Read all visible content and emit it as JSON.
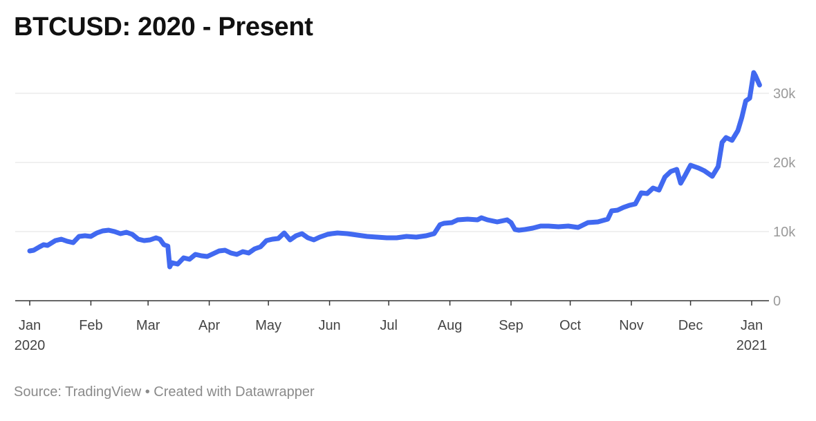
{
  "title": "BTCUSD: 2020 - Present",
  "source_label": "Source: TradingView • Created with Datawrapper",
  "chart_data": {
    "type": "line",
    "title": "BTCUSD: 2020 - Present",
    "xlabel": "",
    "ylabel": "",
    "ylim": [
      0,
      33000
    ],
    "yticks": [
      {
        "value": 0,
        "label": "0"
      },
      {
        "value": 10000,
        "label": "10k"
      },
      {
        "value": 20000,
        "label": "20k"
      },
      {
        "value": 30000,
        "label": "30k"
      }
    ],
    "grid": true,
    "color": "#4169f0",
    "xticks": [
      {
        "date": "2020-01-01",
        "label": "Jan",
        "sub": "2020"
      },
      {
        "date": "2020-02-01",
        "label": "Feb",
        "sub": ""
      },
      {
        "date": "2020-03-01",
        "label": "Mar",
        "sub": ""
      },
      {
        "date": "2020-04-01",
        "label": "Apr",
        "sub": ""
      },
      {
        "date": "2020-05-01",
        "label": "May",
        "sub": ""
      },
      {
        "date": "2020-06-01",
        "label": "Jun",
        "sub": ""
      },
      {
        "date": "2020-07-01",
        "label": "Jul",
        "sub": ""
      },
      {
        "date": "2020-08-01",
        "label": "Aug",
        "sub": ""
      },
      {
        "date": "2020-09-01",
        "label": "Sep",
        "sub": ""
      },
      {
        "date": "2020-10-01",
        "label": "Oct",
        "sub": ""
      },
      {
        "date": "2020-11-01",
        "label": "Nov",
        "sub": ""
      },
      {
        "date": "2020-12-01",
        "label": "Dec",
        "sub": ""
      },
      {
        "date": "2021-01-01",
        "label": "Jan",
        "sub": "2021"
      }
    ],
    "series": [
      {
        "x": [
          "2020-01-01",
          "2020-01-03",
          "2020-01-06",
          "2020-01-08",
          "2020-01-10",
          "2020-01-14",
          "2020-01-17",
          "2020-01-20",
          "2020-01-23",
          "2020-01-26",
          "2020-01-29",
          "2020-02-01",
          "2020-02-04",
          "2020-02-07",
          "2020-02-10",
          "2020-02-13",
          "2020-02-16",
          "2020-02-19",
          "2020-02-22",
          "2020-02-25",
          "2020-02-28",
          "2020-03-02",
          "2020-03-05",
          "2020-03-07",
          "2020-03-09",
          "2020-03-11",
          "2020-03-12",
          "2020-03-13",
          "2020-03-16",
          "2020-03-19",
          "2020-03-22",
          "2020-03-25",
          "2020-03-28",
          "2020-03-31",
          "2020-04-03",
          "2020-04-06",
          "2020-04-09",
          "2020-04-12",
          "2020-04-15",
          "2020-04-18",
          "2020-04-21",
          "2020-04-24",
          "2020-04-27",
          "2020-04-30",
          "2020-05-03",
          "2020-05-06",
          "2020-05-09",
          "2020-05-12",
          "2020-05-15",
          "2020-05-18",
          "2020-05-21",
          "2020-05-24",
          "2020-05-27",
          "2020-05-31",
          "2020-06-02",
          "2020-06-05",
          "2020-06-10",
          "2020-06-15",
          "2020-06-20",
          "2020-06-25",
          "2020-06-30",
          "2020-07-05",
          "2020-07-10",
          "2020-07-15",
          "2020-07-20",
          "2020-07-24",
          "2020-07-27",
          "2020-07-29",
          "2020-08-02",
          "2020-08-05",
          "2020-08-10",
          "2020-08-15",
          "2020-08-17",
          "2020-08-20",
          "2020-08-25",
          "2020-08-30",
          "2020-09-01",
          "2020-09-03",
          "2020-09-05",
          "2020-09-08",
          "2020-09-12",
          "2020-09-16",
          "2020-09-20",
          "2020-09-25",
          "2020-09-30",
          "2020-10-05",
          "2020-10-10",
          "2020-10-15",
          "2020-10-20",
          "2020-10-22",
          "2020-10-25",
          "2020-10-28",
          "2020-10-31",
          "2020-11-03",
          "2020-11-06",
          "2020-11-09",
          "2020-11-12",
          "2020-11-15",
          "2020-11-18",
          "2020-11-21",
          "2020-11-24",
          "2020-11-26",
          "2020-11-28",
          "2020-12-01",
          "2020-12-05",
          "2020-12-08",
          "2020-12-12",
          "2020-12-15",
          "2020-12-17",
          "2020-12-19",
          "2020-12-22",
          "2020-12-25",
          "2020-12-27",
          "2020-12-29",
          "2020-12-31",
          "2021-01-02",
          "2021-01-03",
          "2021-01-05"
        ],
        "values": [
          7200,
          7300,
          7800,
          8100,
          8000,
          8700,
          8900,
          8600,
          8400,
          9300,
          9400,
          9300,
          9800,
          10100,
          10200,
          10000,
          9700,
          9900,
          9600,
          8900,
          8700,
          8800,
          9100,
          8900,
          8100,
          7900,
          4900,
          5500,
          5300,
          6200,
          6000,
          6700,
          6500,
          6400,
          6800,
          7200,
          7300,
          6900,
          6700,
          7100,
          6900,
          7500,
          7800,
          8700,
          8900,
          9000,
          9800,
          8800,
          9400,
          9700,
          9100,
          8800,
          9200,
          9600,
          9700,
          9800,
          9700,
          9500,
          9300,
          9200,
          9100,
          9100,
          9300,
          9200,
          9400,
          9700,
          11000,
          11200,
          11300,
          11700,
          11800,
          11700,
          12000,
          11700,
          11400,
          11700,
          11300,
          10300,
          10200,
          10300,
          10500,
          10800,
          10800,
          10700,
          10800,
          10600,
          11300,
          11400,
          11800,
          13000,
          13100,
          13500,
          13800,
          14000,
          15600,
          15500,
          16300,
          16000,
          17900,
          18700,
          19000,
          17000,
          18000,
          19600,
          19200,
          18800,
          18000,
          19400,
          22900,
          23600,
          23200,
          24600,
          26500,
          28900,
          29300,
          33000,
          32500,
          31200
        ]
      }
    ]
  }
}
